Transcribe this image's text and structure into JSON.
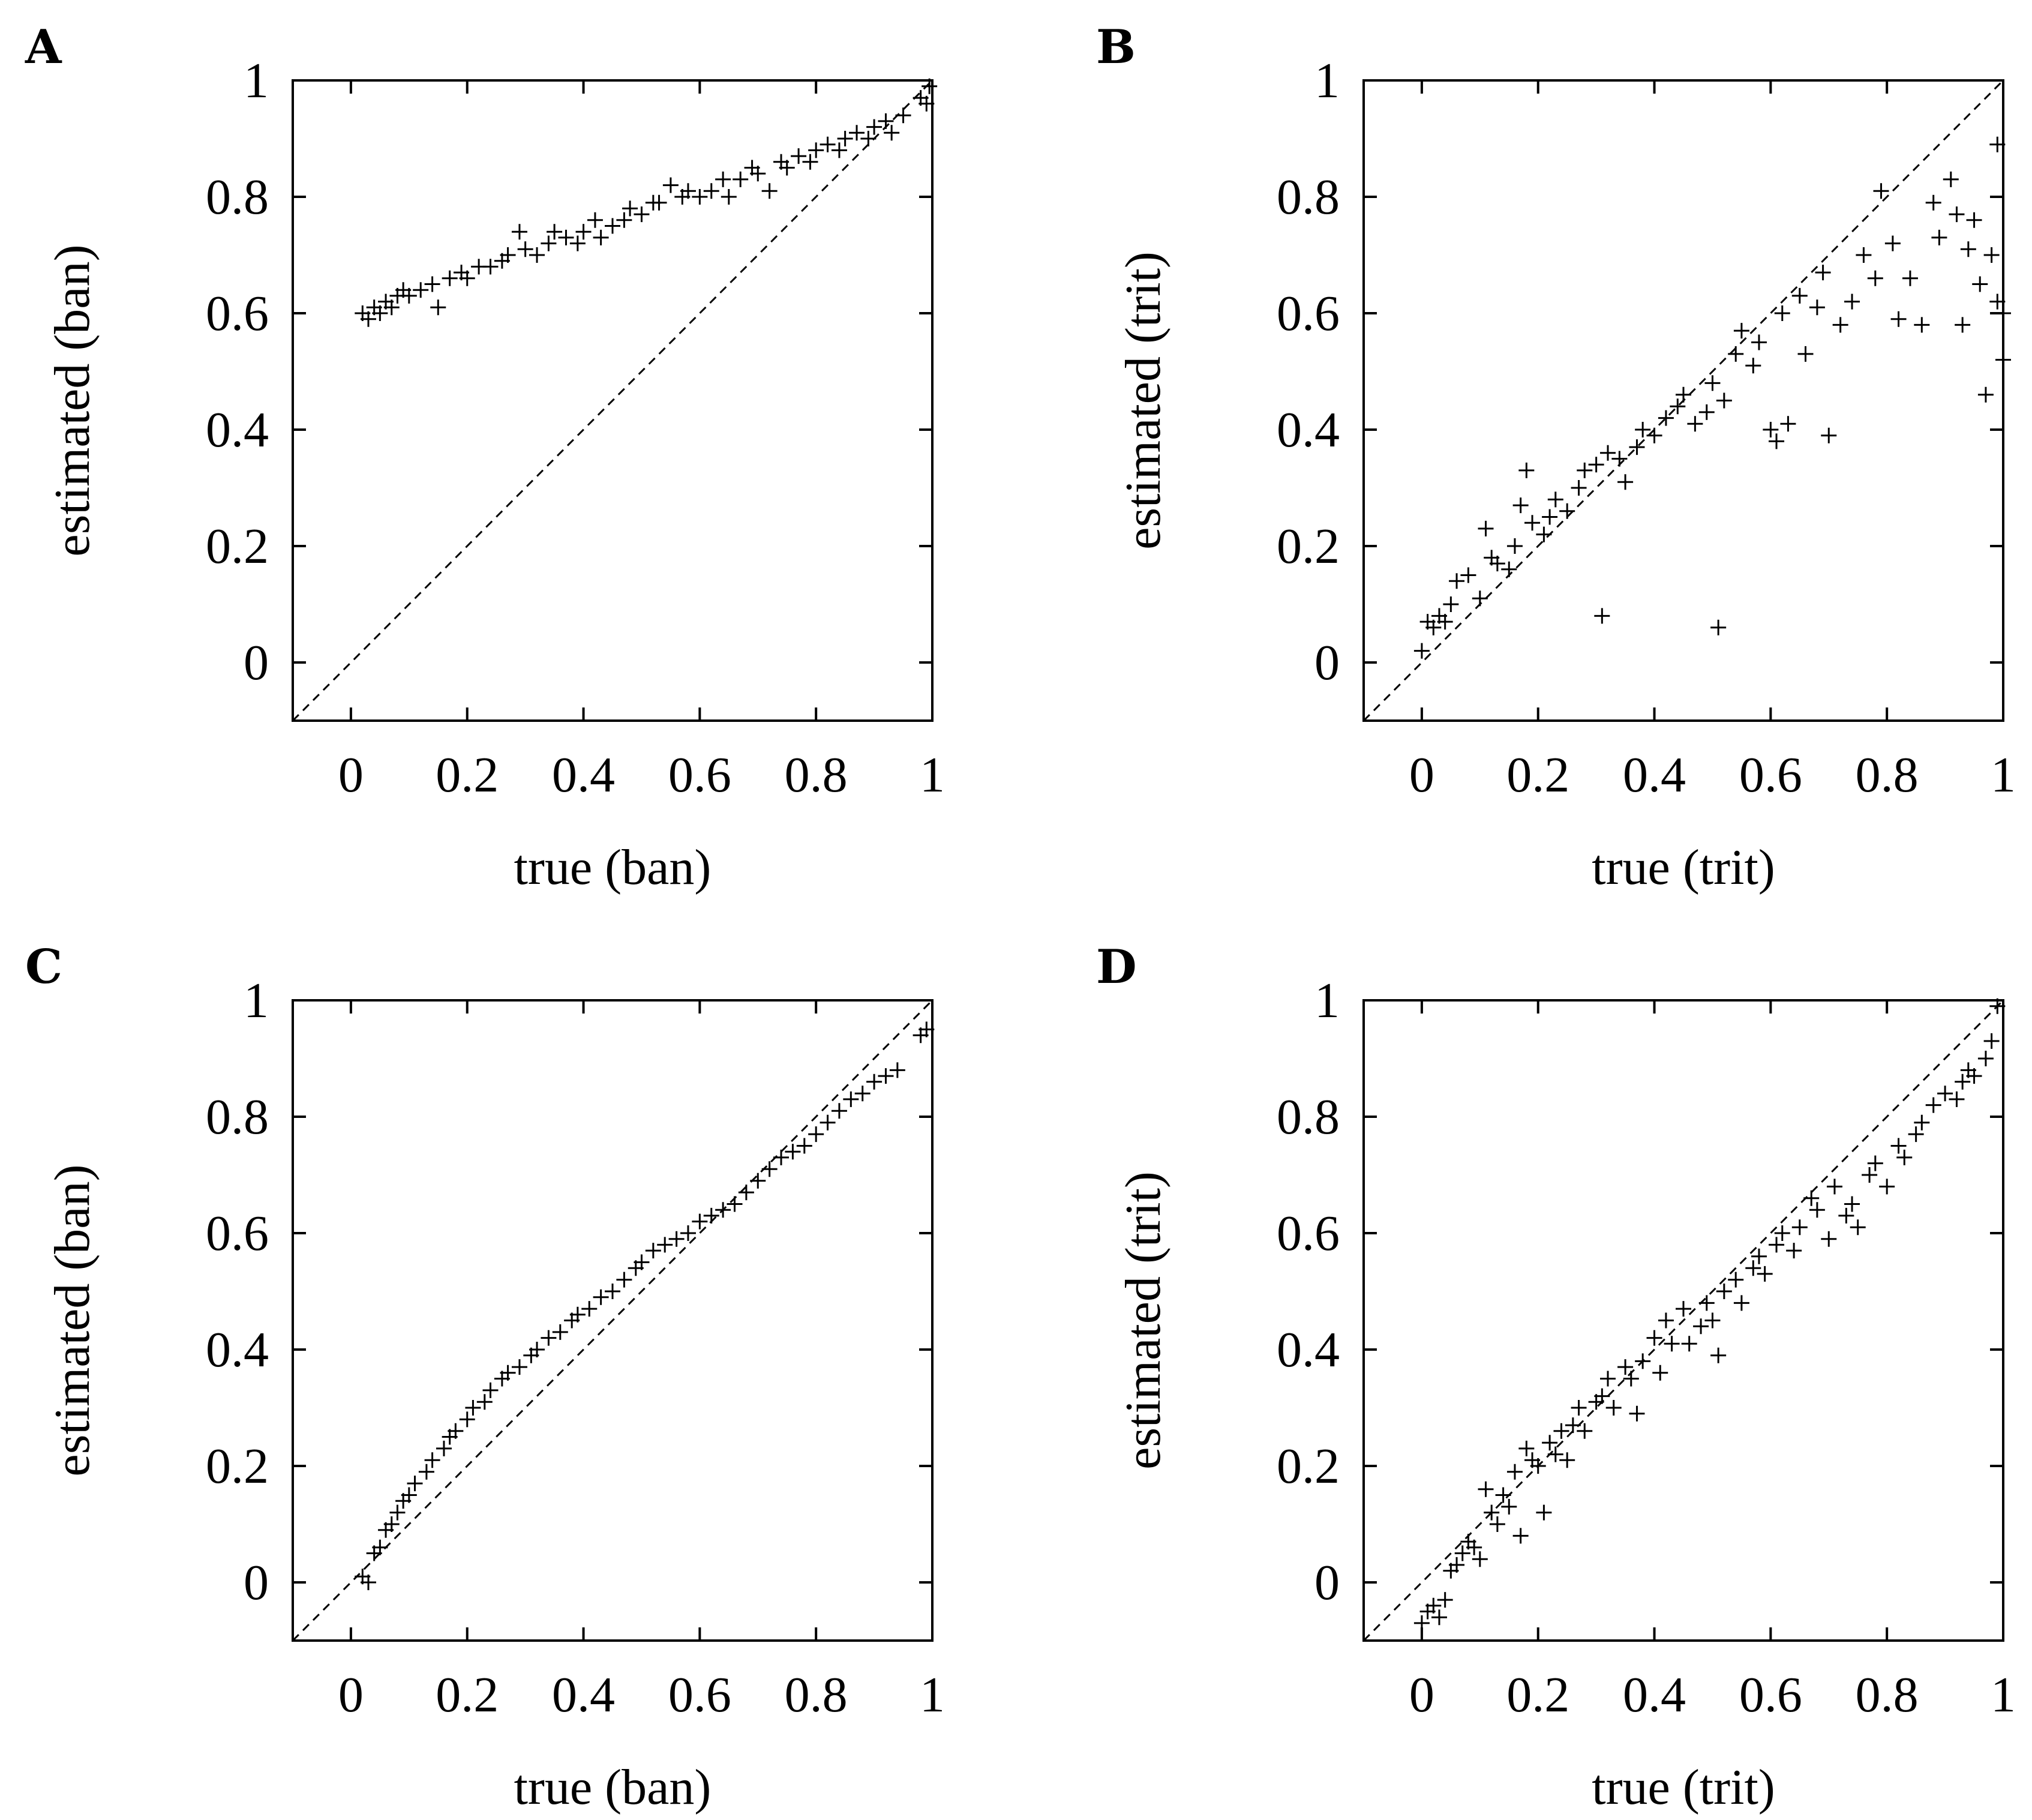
{
  "chart_data": [
    {
      "type": "scatter",
      "panel": "A",
      "xlabel": "true (ban)",
      "ylabel": "estimated (ban)",
      "xlim": [
        -0.1,
        1
      ],
      "ylim": [
        -0.1,
        1
      ],
      "xticks": [
        "0",
        "0.2",
        "0.4",
        "0.6",
        "0.8",
        "1"
      ],
      "yticks": [
        "0",
        "0.2",
        "0.4",
        "0.6",
        "0.8",
        "1"
      ],
      "reference_line": "y = x (dashed)",
      "points": [
        [
          0.02,
          0.6
        ],
        [
          0.03,
          0.59
        ],
        [
          0.04,
          0.61
        ],
        [
          0.05,
          0.6
        ],
        [
          0.06,
          0.62
        ],
        [
          0.07,
          0.61
        ],
        [
          0.08,
          0.63
        ],
        [
          0.09,
          0.64
        ],
        [
          0.1,
          0.63
        ],
        [
          0.12,
          0.64
        ],
        [
          0.14,
          0.65
        ],
        [
          0.15,
          0.61
        ],
        [
          0.17,
          0.66
        ],
        [
          0.19,
          0.67
        ],
        [
          0.2,
          0.66
        ],
        [
          0.22,
          0.68
        ],
        [
          0.24,
          0.68
        ],
        [
          0.26,
          0.69
        ],
        [
          0.27,
          0.7
        ],
        [
          0.29,
          0.74
        ],
        [
          0.3,
          0.71
        ],
        [
          0.32,
          0.7
        ],
        [
          0.34,
          0.72
        ],
        [
          0.35,
          0.74
        ],
        [
          0.37,
          0.73
        ],
        [
          0.39,
          0.72
        ],
        [
          0.4,
          0.74
        ],
        [
          0.42,
          0.76
        ],
        [
          0.43,
          0.73
        ],
        [
          0.45,
          0.75
        ],
        [
          0.47,
          0.76
        ],
        [
          0.48,
          0.78
        ],
        [
          0.5,
          0.77
        ],
        [
          0.52,
          0.79
        ],
        [
          0.53,
          0.79
        ],
        [
          0.55,
          0.82
        ],
        [
          0.57,
          0.8
        ],
        [
          0.58,
          0.81
        ],
        [
          0.6,
          0.8
        ],
        [
          0.62,
          0.81
        ],
        [
          0.64,
          0.83
        ],
        [
          0.65,
          0.8
        ],
        [
          0.67,
          0.83
        ],
        [
          0.69,
          0.85
        ],
        [
          0.7,
          0.84
        ],
        [
          0.72,
          0.81
        ],
        [
          0.74,
          0.86
        ],
        [
          0.75,
          0.85
        ],
        [
          0.77,
          0.87
        ],
        [
          0.79,
          0.86
        ],
        [
          0.8,
          0.88
        ],
        [
          0.82,
          0.89
        ],
        [
          0.84,
          0.88
        ],
        [
          0.85,
          0.9
        ],
        [
          0.87,
          0.91
        ],
        [
          0.89,
          0.9
        ],
        [
          0.9,
          0.92
        ],
        [
          0.92,
          0.93
        ],
        [
          0.93,
          0.91
        ],
        [
          0.95,
          0.94
        ],
        [
          0.98,
          0.97
        ],
        [
          0.99,
          0.96
        ],
        [
          0.995,
          0.99
        ]
      ]
    },
    {
      "type": "scatter",
      "panel": "B",
      "xlabel": "true (trit)",
      "ylabel": "estimated (trit)",
      "xlim": [
        -0.1,
        1
      ],
      "ylim": [
        -0.1,
        1
      ],
      "xticks": [
        "0",
        "0.2",
        "0.4",
        "0.6",
        "0.8",
        "1"
      ],
      "yticks": [
        "0",
        "0.2",
        "0.4",
        "0.6",
        "0.8",
        "1"
      ],
      "reference_line": "y = x (dashed)",
      "points": [
        [
          0.0,
          0.02
        ],
        [
          0.01,
          0.07
        ],
        [
          0.02,
          0.06
        ],
        [
          0.03,
          0.08
        ],
        [
          0.04,
          0.07
        ],
        [
          0.05,
          0.1
        ],
        [
          0.06,
          0.14
        ],
        [
          0.08,
          0.15
        ],
        [
          0.1,
          0.11
        ],
        [
          0.11,
          0.23
        ],
        [
          0.12,
          0.18
        ],
        [
          0.13,
          0.17
        ],
        [
          0.15,
          0.16
        ],
        [
          0.16,
          0.2
        ],
        [
          0.17,
          0.27
        ],
        [
          0.18,
          0.33
        ],
        [
          0.19,
          0.24
        ],
        [
          0.21,
          0.22
        ],
        [
          0.22,
          0.25
        ],
        [
          0.23,
          0.28
        ],
        [
          0.25,
          0.26
        ],
        [
          0.27,
          0.3
        ],
        [
          0.28,
          0.33
        ],
        [
          0.3,
          0.34
        ],
        [
          0.31,
          0.08
        ],
        [
          0.32,
          0.36
        ],
        [
          0.34,
          0.35
        ],
        [
          0.35,
          0.31
        ],
        [
          0.37,
          0.37
        ],
        [
          0.38,
          0.4
        ],
        [
          0.4,
          0.39
        ],
        [
          0.42,
          0.42
        ],
        [
          0.44,
          0.44
        ],
        [
          0.45,
          0.46
        ],
        [
          0.47,
          0.41
        ],
        [
          0.49,
          0.43
        ],
        [
          0.5,
          0.48
        ],
        [
          0.51,
          0.06
        ],
        [
          0.52,
          0.45
        ],
        [
          0.54,
          0.53
        ],
        [
          0.55,
          0.57
        ],
        [
          0.57,
          0.51
        ],
        [
          0.58,
          0.55
        ],
        [
          0.6,
          0.4
        ],
        [
          0.61,
          0.38
        ],
        [
          0.62,
          0.6
        ],
        [
          0.63,
          0.41
        ],
        [
          0.65,
          0.63
        ],
        [
          0.66,
          0.53
        ],
        [
          0.68,
          0.61
        ],
        [
          0.69,
          0.67
        ],
        [
          0.7,
          0.39
        ],
        [
          0.72,
          0.58
        ],
        [
          0.74,
          0.62
        ],
        [
          0.76,
          0.7
        ],
        [
          0.78,
          0.66
        ],
        [
          0.79,
          0.81
        ],
        [
          0.81,
          0.72
        ],
        [
          0.82,
          0.59
        ],
        [
          0.84,
          0.66
        ],
        [
          0.86,
          0.58
        ],
        [
          0.88,
          0.79
        ],
        [
          0.89,
          0.73
        ],
        [
          0.91,
          0.83
        ],
        [
          0.92,
          0.77
        ],
        [
          0.93,
          0.58
        ],
        [
          0.94,
          0.71
        ],
        [
          0.95,
          0.76
        ],
        [
          0.96,
          0.65
        ],
        [
          0.97,
          0.46
        ],
        [
          0.98,
          0.7
        ],
        [
          0.99,
          0.89
        ],
        [
          1.0,
          0.6
        ],
        [
          1.0,
          0.52
        ],
        [
          0.99,
          0.62
        ]
      ]
    },
    {
      "type": "scatter",
      "panel": "C",
      "xlabel": "true (ban)",
      "ylabel": "estimated (ban)",
      "xlim": [
        -0.1,
        1
      ],
      "ylim": [
        -0.1,
        1
      ],
      "xticks": [
        "0",
        "0.2",
        "0.4",
        "0.6",
        "0.8",
        "1"
      ],
      "yticks": [
        "0",
        "0.2",
        "0.4",
        "0.6",
        "0.8",
        "1"
      ],
      "reference_line": "y = x (dashed)",
      "points": [
        [
          0.02,
          0.01
        ],
        [
          0.03,
          0.0
        ],
        [
          0.04,
          0.05
        ],
        [
          0.05,
          0.06
        ],
        [
          0.06,
          0.09
        ],
        [
          0.07,
          0.1
        ],
        [
          0.08,
          0.12
        ],
        [
          0.09,
          0.14
        ],
        [
          0.1,
          0.15
        ],
        [
          0.11,
          0.17
        ],
        [
          0.13,
          0.19
        ],
        [
          0.14,
          0.21
        ],
        [
          0.16,
          0.23
        ],
        [
          0.17,
          0.25
        ],
        [
          0.18,
          0.26
        ],
        [
          0.2,
          0.28
        ],
        [
          0.21,
          0.3
        ],
        [
          0.23,
          0.31
        ],
        [
          0.24,
          0.33
        ],
        [
          0.26,
          0.35
        ],
        [
          0.27,
          0.36
        ],
        [
          0.29,
          0.37
        ],
        [
          0.31,
          0.39
        ],
        [
          0.32,
          0.4
        ],
        [
          0.34,
          0.42
        ],
        [
          0.36,
          0.43
        ],
        [
          0.38,
          0.45
        ],
        [
          0.39,
          0.46
        ],
        [
          0.41,
          0.47
        ],
        [
          0.43,
          0.49
        ],
        [
          0.45,
          0.5
        ],
        [
          0.47,
          0.52
        ],
        [
          0.49,
          0.54
        ],
        [
          0.5,
          0.55
        ],
        [
          0.52,
          0.57
        ],
        [
          0.54,
          0.58
        ],
        [
          0.56,
          0.59
        ],
        [
          0.58,
          0.6
        ],
        [
          0.6,
          0.62
        ],
        [
          0.62,
          0.63
        ],
        [
          0.64,
          0.64
        ],
        [
          0.66,
          0.65
        ],
        [
          0.68,
          0.67
        ],
        [
          0.7,
          0.69
        ],
        [
          0.72,
          0.71
        ],
        [
          0.74,
          0.73
        ],
        [
          0.76,
          0.74
        ],
        [
          0.78,
          0.75
        ],
        [
          0.8,
          0.77
        ],
        [
          0.82,
          0.79
        ],
        [
          0.84,
          0.81
        ],
        [
          0.86,
          0.83
        ],
        [
          0.88,
          0.84
        ],
        [
          0.9,
          0.86
        ],
        [
          0.92,
          0.87
        ],
        [
          0.94,
          0.88
        ],
        [
          0.98,
          0.94
        ],
        [
          0.99,
          0.95
        ]
      ]
    },
    {
      "type": "scatter",
      "panel": "D",
      "xlabel": "true (trit)",
      "ylabel": "estimated (trit)",
      "xlim": [
        -0.1,
        1
      ],
      "ylim": [
        -0.1,
        1
      ],
      "xticks": [
        "0",
        "0.2",
        "0.4",
        "0.6",
        "0.8",
        "1"
      ],
      "yticks": [
        "0",
        "0.2",
        "0.4",
        "0.6",
        "0.8",
        "1"
      ],
      "reference_line": "y = x (dashed)",
      "points": [
        [
          0.0,
          -0.07
        ],
        [
          0.01,
          -0.05
        ],
        [
          0.02,
          -0.04
        ],
        [
          0.03,
          -0.06
        ],
        [
          0.04,
          -0.03
        ],
        [
          0.05,
          0.02
        ],
        [
          0.06,
          0.03
        ],
        [
          0.07,
          0.05
        ],
        [
          0.08,
          0.07
        ],
        [
          0.09,
          0.06
        ],
        [
          0.1,
          0.04
        ],
        [
          0.11,
          0.16
        ],
        [
          0.12,
          0.12
        ],
        [
          0.13,
          0.1
        ],
        [
          0.14,
          0.15
        ],
        [
          0.15,
          0.13
        ],
        [
          0.16,
          0.19
        ],
        [
          0.17,
          0.08
        ],
        [
          0.18,
          0.23
        ],
        [
          0.19,
          0.21
        ],
        [
          0.2,
          0.2
        ],
        [
          0.21,
          0.12
        ],
        [
          0.22,
          0.24
        ],
        [
          0.23,
          0.22
        ],
        [
          0.24,
          0.26
        ],
        [
          0.25,
          0.21
        ],
        [
          0.26,
          0.27
        ],
        [
          0.27,
          0.3
        ],
        [
          0.28,
          0.26
        ],
        [
          0.3,
          0.31
        ],
        [
          0.31,
          0.32
        ],
        [
          0.32,
          0.35
        ],
        [
          0.33,
          0.3
        ],
        [
          0.35,
          0.37
        ],
        [
          0.36,
          0.35
        ],
        [
          0.37,
          0.29
        ],
        [
          0.38,
          0.38
        ],
        [
          0.4,
          0.42
        ],
        [
          0.41,
          0.36
        ],
        [
          0.42,
          0.45
        ],
        [
          0.43,
          0.41
        ],
        [
          0.45,
          0.47
        ],
        [
          0.46,
          0.41
        ],
        [
          0.48,
          0.44
        ],
        [
          0.49,
          0.48
        ],
        [
          0.5,
          0.45
        ],
        [
          0.51,
          0.39
        ],
        [
          0.52,
          0.5
        ],
        [
          0.54,
          0.52
        ],
        [
          0.55,
          0.48
        ],
        [
          0.57,
          0.54
        ],
        [
          0.58,
          0.56
        ],
        [
          0.59,
          0.53
        ],
        [
          0.61,
          0.58
        ],
        [
          0.62,
          0.6
        ],
        [
          0.64,
          0.57
        ],
        [
          0.65,
          0.61
        ],
        [
          0.67,
          0.66
        ],
        [
          0.68,
          0.64
        ],
        [
          0.7,
          0.59
        ],
        [
          0.71,
          0.68
        ],
        [
          0.73,
          0.63
        ],
        [
          0.74,
          0.65
        ],
        [
          0.75,
          0.61
        ],
        [
          0.77,
          0.7
        ],
        [
          0.78,
          0.72
        ],
        [
          0.8,
          0.68
        ],
        [
          0.82,
          0.75
        ],
        [
          0.83,
          0.73
        ],
        [
          0.85,
          0.77
        ],
        [
          0.86,
          0.79
        ],
        [
          0.88,
          0.82
        ],
        [
          0.9,
          0.84
        ],
        [
          0.92,
          0.83
        ],
        [
          0.93,
          0.86
        ],
        [
          0.94,
          0.88
        ],
        [
          0.95,
          0.87
        ],
        [
          0.97,
          0.9
        ],
        [
          0.98,
          0.93
        ],
        [
          0.99,
          0.99
        ]
      ]
    }
  ]
}
